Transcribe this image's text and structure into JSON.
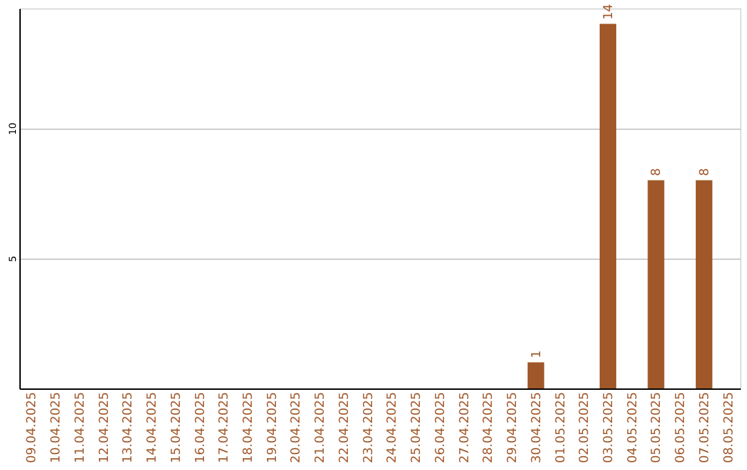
{
  "chart_data": {
    "type": "bar",
    "categories": [
      "09.04.2025",
      "10.04.2025",
      "11.04.2025",
      "12.04.2025",
      "13.04.2025",
      "14.04.2025",
      "15.04.2025",
      "16.04.2025",
      "17.04.2025",
      "18.04.2025",
      "19.04.2025",
      "20.04.2025",
      "21.04.2025",
      "22.04.2025",
      "23.04.2025",
      "24.04.2025",
      "25.04.2025",
      "26.04.2025",
      "27.04.2025",
      "28.04.2025",
      "29.04.2025",
      "30.04.2025",
      "01.05.2025",
      "02.05.2025",
      "03.05.2025",
      "04.05.2025",
      "05.05.2025",
      "06.05.2025",
      "07.05.2025",
      "08.05.2025"
    ],
    "values": [
      0,
      0,
      0,
      0,
      0,
      0,
      0,
      0,
      0,
      0,
      0,
      0,
      0,
      0,
      0,
      0,
      0,
      0,
      0,
      0,
      0,
      1,
      0,
      0,
      14,
      0,
      8,
      0,
      8,
      0
    ],
    "value_labels": [
      null,
      null,
      null,
      null,
      null,
      null,
      null,
      null,
      null,
      null,
      null,
      null,
      null,
      null,
      null,
      null,
      null,
      null,
      null,
      null,
      null,
      "1",
      null,
      null,
      "14",
      null,
      "8",
      null,
      "8",
      null
    ],
    "color": "#a0582a",
    "ylim": [
      0,
      14.6
    ],
    "yticks": [
      5,
      10
    ],
    "grid": "y"
  }
}
